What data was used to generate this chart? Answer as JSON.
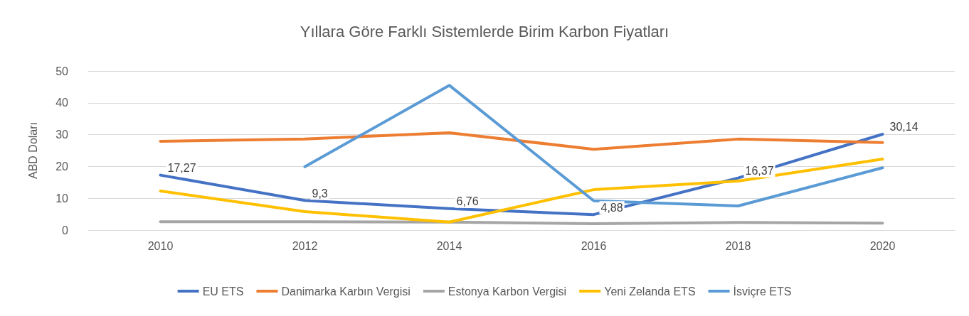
{
  "chart_data": {
    "type": "line",
    "title": "Yıllara Göre Farklı Sistemlerde Birim Karbon Fiyatları",
    "ylabel": "ABD Doları",
    "categories": [
      "2010",
      "2012",
      "2014",
      "2016",
      "2018",
      "2020"
    ],
    "series": [
      {
        "name": "EU ETS",
        "color": "#4472c4",
        "values": [
          17.27,
          9.3,
          6.76,
          4.88,
          16.37,
          30.14
        ],
        "value_labels": [
          "17,27",
          "9,3",
          "6,76",
          "4,88",
          "16,37",
          "30,14"
        ]
      },
      {
        "name": "Danimarka Karbın Vergisi",
        "color": "#ed7d31",
        "values": [
          27.9,
          28.6,
          30.6,
          25.4,
          28.6,
          27.5
        ]
      },
      {
        "name": "Estonya Karbon Vergisi",
        "color": "#a5a5a5",
        "values": [
          2.6,
          2.6,
          2.5,
          2.0,
          2.4,
          2.2
        ]
      },
      {
        "name": "Yeni Zelanda ETS",
        "color": "#ffc000",
        "values": [
          12.3,
          5.8,
          2.5,
          12.7,
          15.4,
          22.3
        ]
      },
      {
        "name": "İsviçre ETS",
        "color": "#5b9bd5",
        "values": [
          null,
          19.9,
          45.5,
          9.2,
          7.6,
          19.6
        ]
      }
    ],
    "ylim": [
      0,
      50
    ],
    "yticks": [
      0,
      10,
      20,
      30,
      40,
      50
    ],
    "grid": "y",
    "legend": "bottom",
    "marker": "none",
    "line_style": "solid"
  }
}
